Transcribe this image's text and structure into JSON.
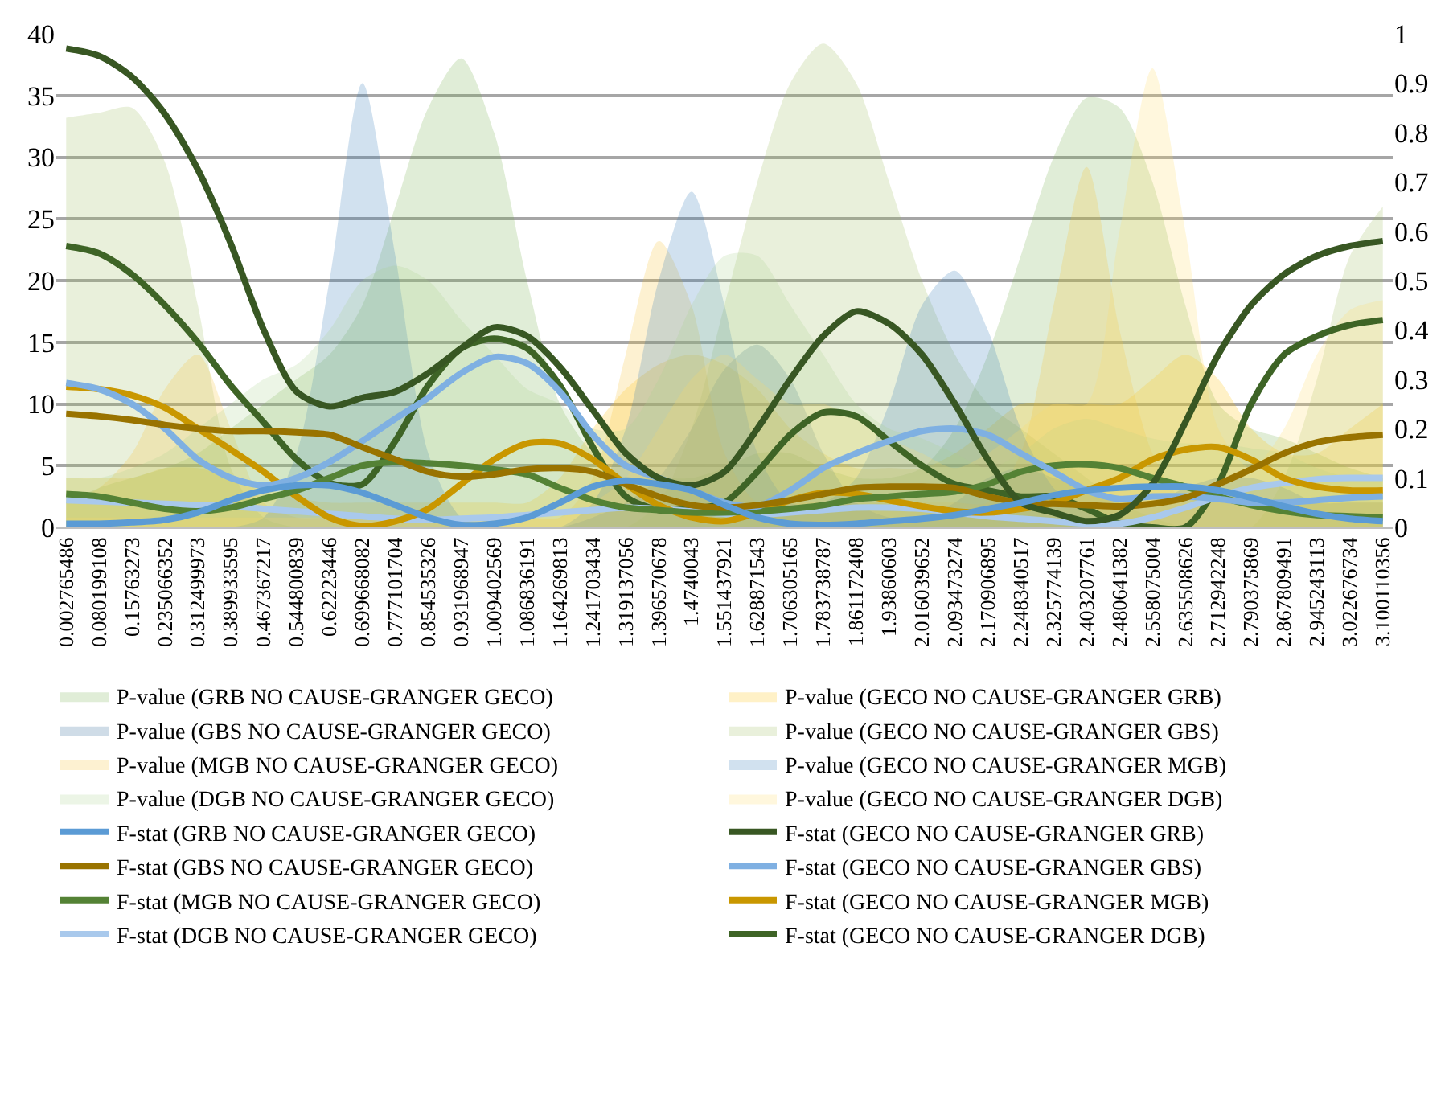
{
  "chart_data": {
    "type": "line",
    "categories": [
      "0.002765486",
      "0.080199108",
      "0.15763273",
      "0.235066352",
      "0.312499973",
      "0.389933595",
      "0.467367217",
      "0.544800839",
      "0.62223446",
      "0.699668082",
      "0.777101704",
      "0.854535326",
      "0.931968947",
      "1.009402569",
      "1.086836191",
      "1.164269813",
      "1.241703434",
      "1.319137056",
      "1.396570678",
      "1.4740043",
      "1.551437921",
      "1.628871543",
      "1.706305165",
      "1.783738787",
      "1.861172408",
      "1.93860603",
      "2.016039652",
      "2.093473274",
      "2.170906895",
      "2.248340517",
      "2.325774139",
      "2.403207761",
      "2.480641382",
      "2.558075004",
      "2.635508626",
      "2.712942248",
      "2.790375869",
      "2.867809491",
      "2.945243113",
      "3.022676734",
      "3.100110356"
    ],
    "series": [
      {
        "name": "P-value (GRB NO CAUSE-GRANGER GECO)",
        "type": "area",
        "axis": "y2",
        "color": "#70ad47",
        "values": [
          0.05,
          0.08,
          0.1,
          0.12,
          0.15,
          0.2,
          0.25,
          0.3,
          0.35,
          0.45,
          0.65,
          0.85,
          0.95,
          0.8,
          0.5,
          0.25,
          0.15,
          0.1,
          0.1,
          0.1,
          0.12,
          0.15,
          0.15,
          0.12,
          0.1,
          0.1,
          0.12,
          0.2,
          0.35,
          0.55,
          0.75,
          0.87,
          0.85,
          0.7,
          0.45,
          0.25,
          0.2,
          0.18,
          0.15,
          0.12,
          0.1
        ]
      },
      {
        "name": "P-value (GECO NO CAUSE-GRANGER GRB)",
        "type": "area",
        "axis": "y2",
        "color": "#ffc000",
        "values": [
          0.1,
          0.1,
          0.1,
          0.12,
          0.12,
          0.1,
          0.08,
          0.06,
          0.05,
          0.05,
          0.05,
          0.05,
          0.05,
          0.05,
          0.05,
          0.1,
          0.2,
          0.28,
          0.33,
          0.35,
          0.33,
          0.28,
          0.2,
          0.15,
          0.12,
          0.12,
          0.12,
          0.15,
          0.2,
          0.25,
          0.25,
          0.25,
          0.25,
          0.3,
          0.35,
          0.3,
          0.2,
          0.15,
          0.15,
          0.2,
          0.25
        ]
      },
      {
        "name": "P-value (GBS NO CAUSE-GRANGER GECO)",
        "type": "area",
        "axis": "y2",
        "color": "#255e91",
        "values": [
          0,
          0,
          0,
          0,
          0,
          0,
          0,
          0,
          0,
          0,
          0,
          0,
          0,
          0,
          0,
          0,
          0.02,
          0.05,
          0.1,
          0.2,
          0.32,
          0.37,
          0.3,
          0.15,
          0.05,
          0.02,
          0.02,
          0.05,
          0.1,
          0.12,
          0.1,
          0.08,
          0.05,
          0.05,
          0.08,
          0.1,
          0.1,
          0.08,
          0.05,
          0.05,
          0.05
        ]
      },
      {
        "name": "P-value (GECO NO CAUSE-GRANGER GBS)",
        "type": "area",
        "axis": "y2",
        "color": "#9bbb59",
        "values": [
          0.83,
          0.84,
          0.85,
          0.74,
          0.45,
          0.12,
          0.02,
          0,
          0,
          0,
          0,
          0,
          0,
          0,
          0,
          0,
          0,
          0,
          0.05,
          0.2,
          0.45,
          0.7,
          0.9,
          0.98,
          0.9,
          0.7,
          0.5,
          0.35,
          0.25,
          0.2,
          0.15,
          0.1,
          0.05,
          0.02,
          0,
          0,
          0,
          0.1,
          0.3,
          0.55,
          0.65
        ]
      },
      {
        "name": "P-value (MGB NO CAUSE-GRANGER GECO)",
        "type": "area",
        "axis": "y2",
        "color": "#f8c12c",
        "values": [
          0.05,
          0.08,
          0.15,
          0.28,
          0.35,
          0.2,
          0.05,
          0.02,
          0.02,
          0.02,
          0.02,
          0.02,
          0.02,
          0.02,
          0.02,
          0.02,
          0.1,
          0.35,
          0.58,
          0.45,
          0.15,
          0.05,
          0.05,
          0.05,
          0.05,
          0.05,
          0.05,
          0.05,
          0.05,
          0.15,
          0.45,
          0.73,
          0.4,
          0.15,
          0.05,
          0.05,
          0.05,
          0.05,
          0.05,
          0.05,
          0.05
        ]
      },
      {
        "name": "P-value (GECO NO CAUSE-GRANGER MGB)",
        "type": "area",
        "axis": "y2",
        "color": "#2e75b6",
        "values": [
          0,
          0,
          0,
          0,
          0,
          0,
          0.02,
          0.15,
          0.5,
          0.9,
          0.55,
          0.15,
          0.02,
          0,
          0,
          0,
          0.05,
          0.2,
          0.5,
          0.68,
          0.45,
          0.15,
          0.05,
          0.05,
          0.1,
          0.25,
          0.45,
          0.52,
          0.4,
          0.2,
          0.08,
          0.03,
          0.02,
          0,
          0,
          0,
          0,
          0,
          0,
          0,
          0
        ]
      },
      {
        "name": "P-value (DGB NO CAUSE-GRANGER GECO)",
        "type": "area",
        "axis": "y2",
        "color": "#a9d18e",
        "values": [
          0.1,
          0.1,
          0.12,
          0.15,
          0.2,
          0.25,
          0.3,
          0.33,
          0.4,
          0.5,
          0.53,
          0.5,
          0.42,
          0.35,
          0.28,
          0.25,
          0.2,
          0.2,
          0.3,
          0.45,
          0.55,
          0.55,
          0.45,
          0.35,
          0.25,
          0.2,
          0.18,
          0.15,
          0.12,
          0.15,
          0.2,
          0.22,
          0.2,
          0.18,
          0.17,
          0.17,
          0.16,
          0.15,
          0.12,
          0.1,
          0.1
        ]
      },
      {
        "name": "P-value (GECO NO CAUSE-GRANGER DGB)",
        "type": "area",
        "axis": "y2",
        "color": "#ffd966",
        "values": [
          0.02,
          0.02,
          0.02,
          0.02,
          0.02,
          0.02,
          0.02,
          0.02,
          0.02,
          0.02,
          0.02,
          0.02,
          0.02,
          0.02,
          0.02,
          0.02,
          0.05,
          0.1,
          0.2,
          0.3,
          0.35,
          0.3,
          0.25,
          0.25,
          0.22,
          0.18,
          0.15,
          0.12,
          0.15,
          0.2,
          0.25,
          0.25,
          0.6,
          0.93,
          0.6,
          0.2,
          0.12,
          0.2,
          0.35,
          0.44,
          0.46
        ]
      },
      {
        "name": "F-stat (GRB NO CAUSE-GRANGER GECO)",
        "color": "#5b9bd5",
        "values": [
          0.3,
          0.3,
          0.4,
          0.6,
          1.2,
          2.2,
          3,
          3.4,
          3.4,
          2.8,
          1.8,
          0.8,
          0.2,
          0.3,
          0.8,
          2,
          3.3,
          3.8,
          3.5,
          3,
          1.8,
          0.8,
          0.3,
          0.2,
          0.3,
          0.5,
          0.7,
          1,
          1.5,
          2,
          2.6,
          3,
          3.2,
          3.3,
          3.3,
          3,
          2.4,
          1.7,
          1.1,
          0.7,
          0.5
        ]
      },
      {
        "name": "F-stat (GECO NO CAUSE-GRANGER GRB)",
        "color": "#385723",
        "values": [
          38.8,
          38.2,
          36.5,
          33.5,
          29,
          23,
          16,
          11,
          9.8,
          10.5,
          11,
          12.5,
          14.5,
          16.2,
          15.5,
          13,
          9.5,
          6,
          4,
          3.4,
          4.5,
          8,
          12,
          15.5,
          17.5,
          16.5,
          14,
          10,
          5.5,
          2,
          1.2,
          0.5,
          1,
          3.5,
          8.5,
          14,
          18,
          20.5,
          22,
          22.8,
          23.2
        ]
      },
      {
        "name": "F-stat (GBS NO CAUSE-GRANGER GECO)",
        "color": "#997300",
        "values": [
          9.2,
          9,
          8.7,
          8.3,
          8,
          7.8,
          7.8,
          7.7,
          7.5,
          6.5,
          5.5,
          4.5,
          4.1,
          4.3,
          4.7,
          4.8,
          4.5,
          3.5,
          2.5,
          1.8,
          1.6,
          1.8,
          2.2,
          2.7,
          3.2,
          3.3,
          3.3,
          3.2,
          2.5,
          2,
          1.9,
          1.8,
          1.7,
          1.9,
          2.4,
          3.5,
          4.7,
          6,
          6.9,
          7.3,
          7.5
        ]
      },
      {
        "name": "F-stat (GECO NO CAUSE-GRANGER GBS)",
        "color": "#7fb0e2",
        "values": [
          11.7,
          11.2,
          10,
          8,
          5.5,
          4,
          3.4,
          4,
          5.3,
          7,
          8.8,
          10.5,
          12.5,
          13.8,
          13.3,
          11,
          7.5,
          5,
          4,
          3,
          2,
          1.7,
          3,
          4.8,
          6,
          7,
          7.8,
          8,
          7.5,
          6,
          4.5,
          3,
          2.3,
          2.5,
          2.5,
          2.3,
          2,
          2,
          2.2,
          2.4,
          2.5
        ]
      },
      {
        "name": "F-stat (MGB NO CAUSE-GRANGER GECO)",
        "color": "#548235",
        "values": [
          2.7,
          2.5,
          2,
          1.5,
          1.3,
          1.6,
          2.3,
          3,
          4,
          5,
          5.3,
          5.2,
          5,
          4.7,
          4.3,
          3.2,
          2.2,
          1.6,
          1.4,
          1.2,
          1.2,
          1.3,
          1.5,
          1.8,
          2.3,
          2.5,
          2.7,
          2.9,
          3.5,
          4.5,
          5,
          5.1,
          4.8,
          4,
          3.3,
          2.5,
          1.8,
          1.3,
          1,
          0.9,
          0.8
        ]
      },
      {
        "name": "F-stat (GECO NO CAUSE-GRANGER MGB)",
        "color": "#c99700",
        "values": [
          11.4,
          11.2,
          10.7,
          9.7,
          8,
          6.3,
          4.5,
          2.5,
          0.8,
          0.1,
          0.5,
          1.5,
          3.5,
          5.5,
          6.8,
          6.8,
          5.5,
          3.5,
          1.8,
          0.8,
          0.5,
          1.2,
          2.2,
          2.8,
          2.7,
          2.2,
          1.7,
          1.3,
          1.2,
          1.5,
          2,
          3,
          4,
          5.5,
          6.3,
          6.5,
          5.5,
          4,
          3.3,
          3,
          3
        ]
      },
      {
        "name": "F-stat (DGB NO CAUSE-GRANGER GECO)",
        "color": "#a9c9ec",
        "values": [
          2.2,
          2.1,
          2,
          1.9,
          1.8,
          1.7,
          1.5,
          1.3,
          1.1,
          0.9,
          0.7,
          0.6,
          0.7,
          0.8,
          1,
          1.2,
          1.4,
          1.6,
          1.5,
          1.3,
          1.1,
          1,
          1.2,
          1.4,
          1.6,
          1.6,
          1.5,
          1.2,
          0.9,
          0.7,
          0.5,
          0.3,
          0.3,
          0.8,
          1.6,
          2.5,
          3.2,
          3.6,
          3.9,
          4,
          4
        ]
      },
      {
        "name": "F-stat (GECO NO CAUSE-GRANGER DGB)",
        "color": "#3e6426",
        "values": [
          22.8,
          22.2,
          20.5,
          18,
          15,
          11.5,
          8.5,
          5.5,
          3.6,
          3.5,
          7,
          11.5,
          14.5,
          15.3,
          14.5,
          11.5,
          6.5,
          2.5,
          1.4,
          1.5,
          2,
          4.5,
          7.5,
          9.3,
          9,
          7,
          5,
          3.5,
          3,
          2.5,
          2.5,
          1.5,
          0.3,
          0,
          0,
          3.5,
          10,
          14,
          15.5,
          16.4,
          16.8
        ]
      }
    ],
    "ylim": [
      0,
      40
    ],
    "yticks": [
      0,
      5,
      10,
      15,
      20,
      25,
      30,
      35,
      40
    ],
    "y2lim": [
      0,
      1
    ],
    "y2ticks": [
      0,
      0.1,
      0.2,
      0.3,
      0.4,
      0.5,
      0.6,
      0.7,
      0.8,
      0.9,
      1
    ],
    "grid": "y",
    "legend": "bottom"
  }
}
